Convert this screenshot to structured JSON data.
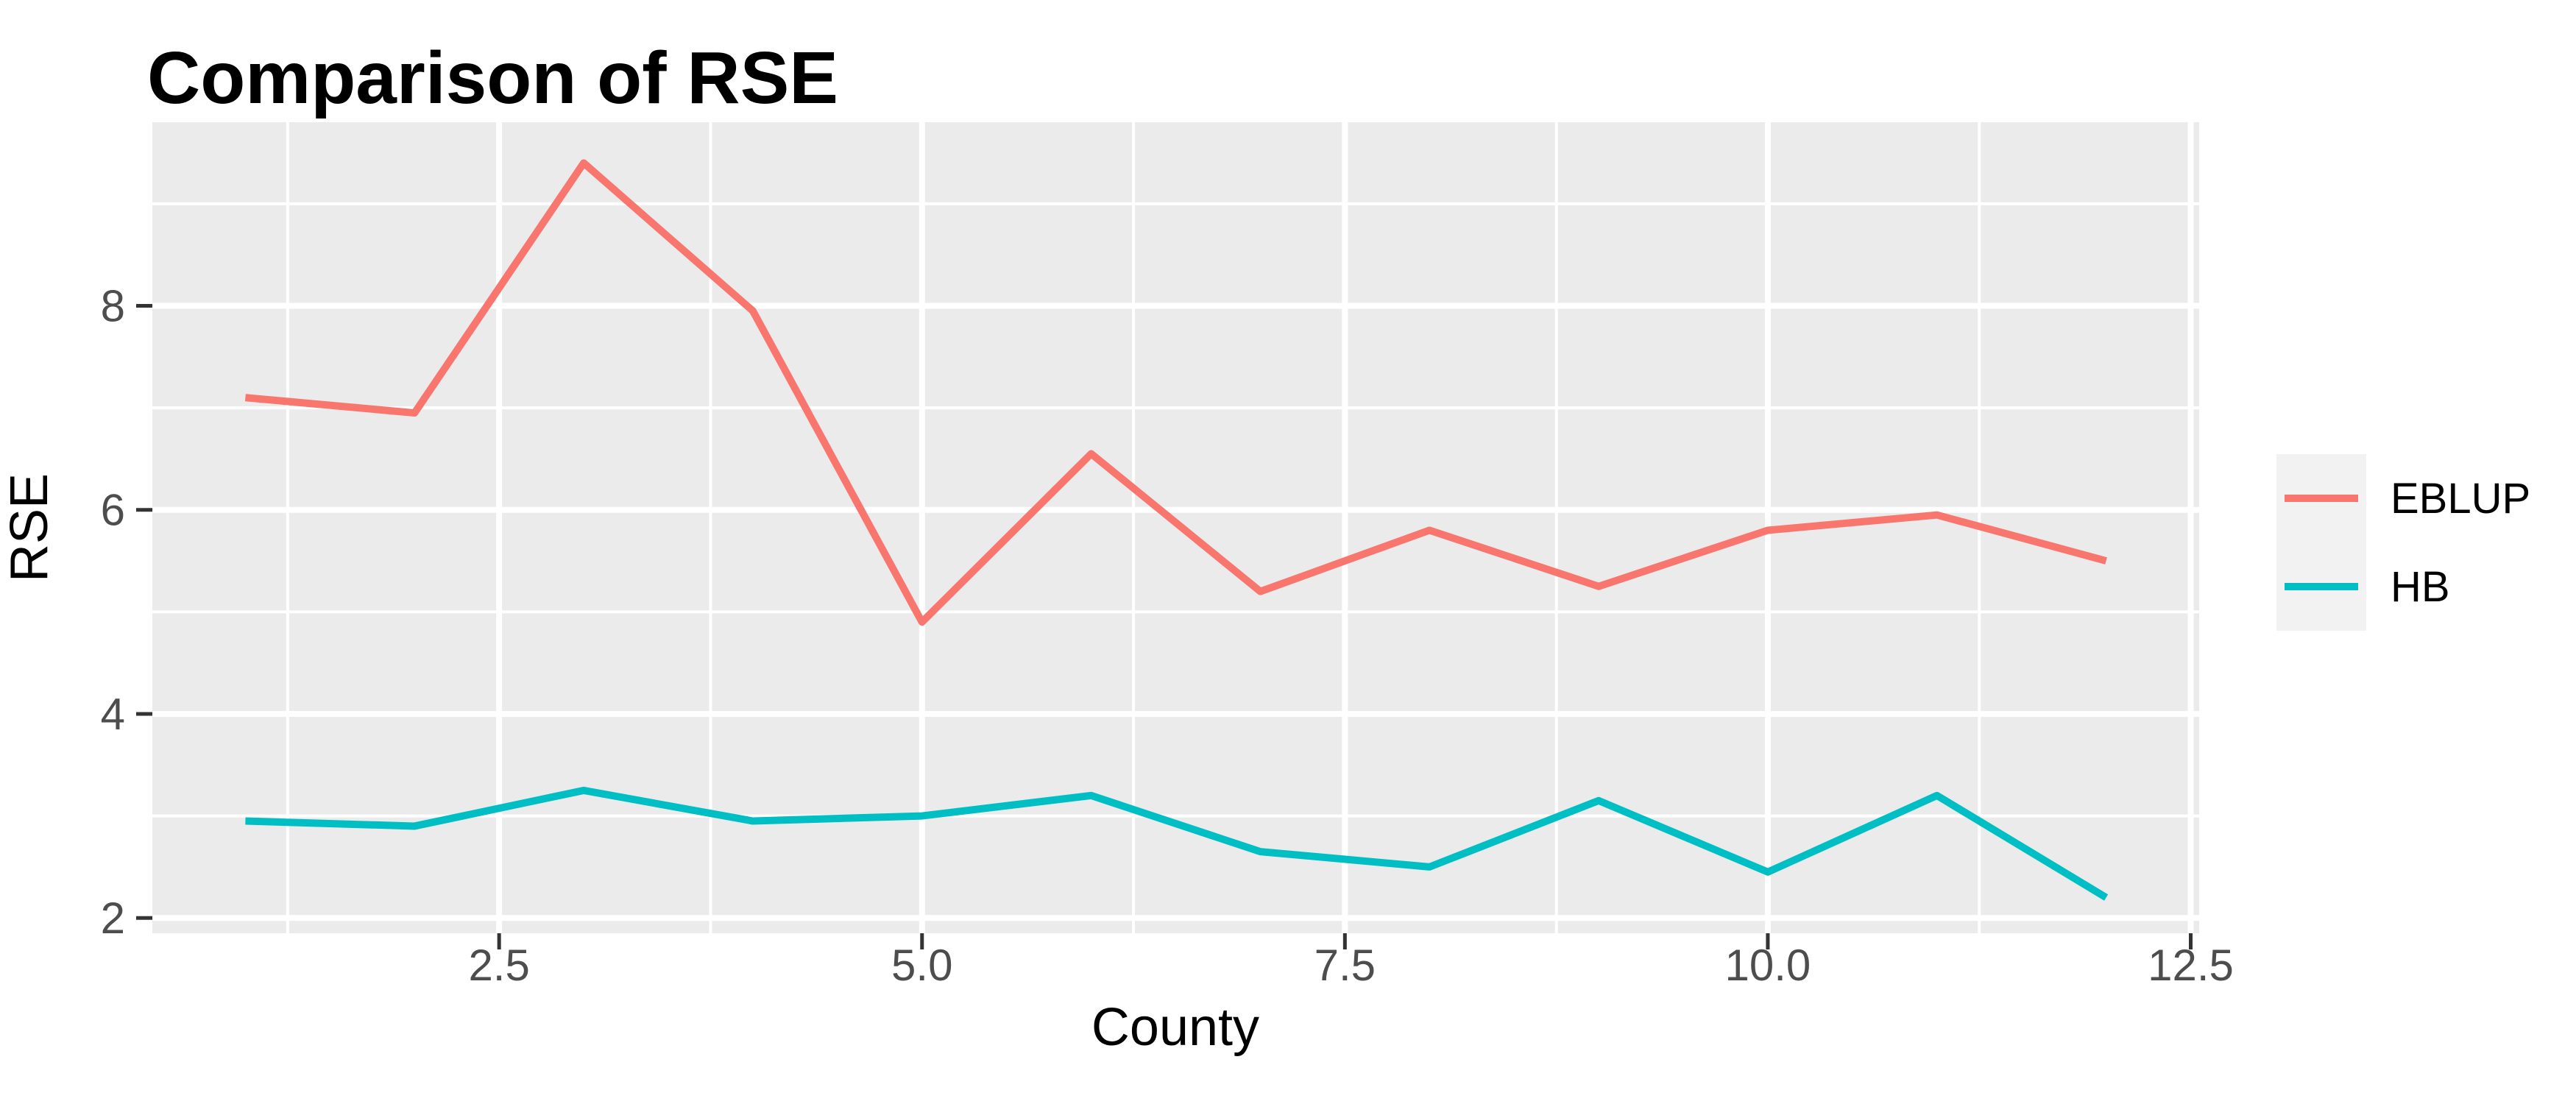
{
  "page": {
    "background": "#FFFFFF"
  },
  "chart_data": {
    "type": "line",
    "title": "Comparison of RSE",
    "xlabel": "County",
    "ylabel": "RSE",
    "x": [
      1,
      2,
      3,
      4,
      5,
      6,
      7,
      8,
      9,
      10,
      11,
      12
    ],
    "series": [
      {
        "name": "EBLUP",
        "color": "#F8766D",
        "values": [
          7.1,
          6.95,
          9.4,
          7.95,
          4.9,
          6.55,
          5.2,
          5.8,
          5.25,
          5.8,
          5.95,
          5.5
        ]
      },
      {
        "name": "HB",
        "color": "#00BFC4",
        "values": [
          2.95,
          2.9,
          3.25,
          2.95,
          3.0,
          3.2,
          2.65,
          2.5,
          3.15,
          2.45,
          3.2,
          2.2
        ]
      }
    ],
    "xlim": [
      0.45,
      12.55
    ],
    "ylim": [
      1.85,
      9.8
    ],
    "x_ticks": {
      "major": [
        2.5,
        5,
        7.5,
        10,
        12.5
      ],
      "labels": [
        "2.5",
        "5.0",
        "7.5",
        "10.0",
        "12.5"
      ],
      "minor": [
        1.25,
        3.75,
        6.25,
        8.75,
        11.25
      ]
    },
    "y_ticks": {
      "major": [
        2,
        4,
        6,
        8
      ],
      "labels": [
        "2",
        "4",
        "6",
        "8"
      ],
      "minor": [
        3,
        5,
        7,
        9
      ]
    },
    "grid": true,
    "legend_position": "right",
    "theme": {
      "panel_bg": "#EBEBEB",
      "grid_color": "#FFFFFF",
      "tick_color": "#333333",
      "tick_label_color": "#4D4D4D",
      "text_color": "#000000",
      "legend_key_bg": "#F2F2F2"
    }
  }
}
